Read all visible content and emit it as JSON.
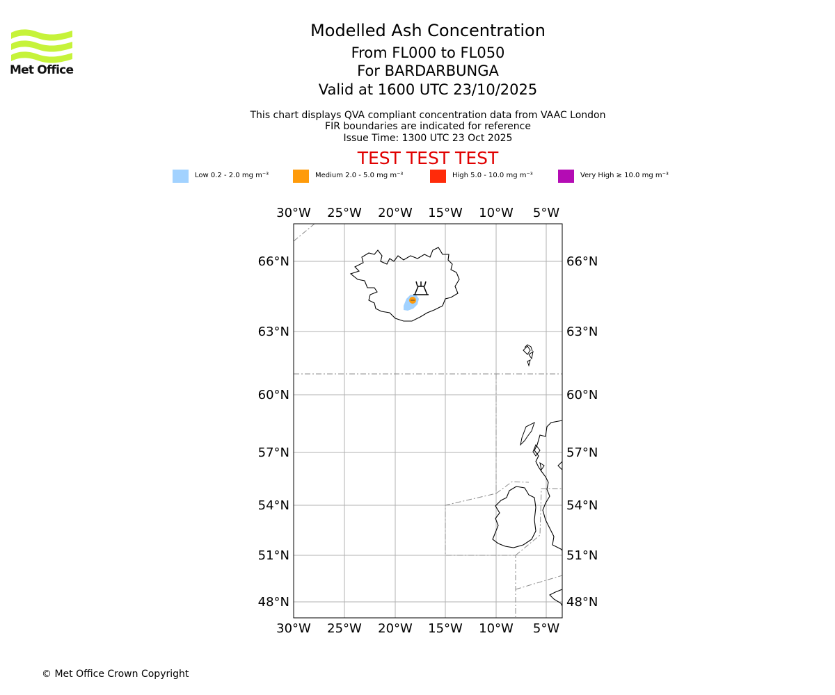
{
  "logo": {
    "text": "Met Office",
    "color": "#c6f33a"
  },
  "header": {
    "title": "Modelled Ash Concentration",
    "levels": "From FL000 to FL050",
    "volcano": "For BARDARBUNGA",
    "valid_time": "Valid at 1600 UTC 23/10/2025"
  },
  "info": {
    "line1": "This chart displays QVA compliant concentration data from VAAC London",
    "line2": "FIR boundaries are indicated for reference",
    "line3": "Issue Time: 1300 UTC 23 Oct 2025"
  },
  "banner": {
    "text": "TEST TEST TEST",
    "color": "#e00000"
  },
  "legend": [
    {
      "label": "Low 0.2 - 2.0 mg m⁻³",
      "color": "#a2d2ff"
    },
    {
      "label": "Medium 2.0 - 5.0 mg m⁻³",
      "color": "#ff9b0a"
    },
    {
      "label": "High 5.0 - 10.0 mg m⁻³",
      "color": "#ff2b0a"
    },
    {
      "label": "Very High ≥ 10.0 mg m⁻³",
      "color": "#b40cb4"
    }
  ],
  "map": {
    "lon_ticks": [
      "30°W",
      "25°W",
      "20°W",
      "15°W",
      "10°W",
      "5°W"
    ],
    "lat_ticks": [
      "66°N",
      "63°N",
      "60°N",
      "57°N",
      "54°N",
      "51°N",
      "48°N"
    ],
    "volcano_marker": "volcano-symbol",
    "ash_levels_present": [
      "Low",
      "Medium"
    ]
  },
  "footer": {
    "copyright": "© Met Office Crown Copyright"
  }
}
